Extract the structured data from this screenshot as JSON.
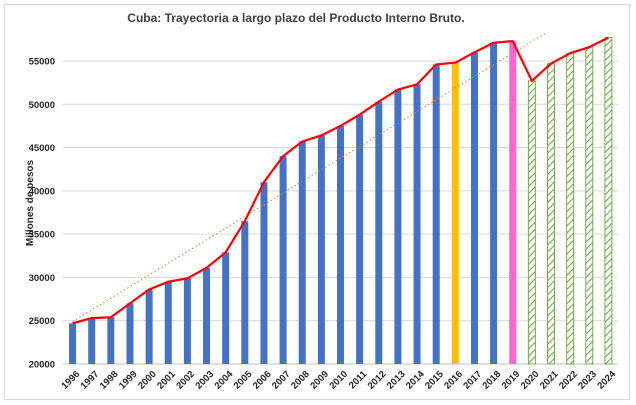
{
  "chart_data": {
    "type": "bar",
    "title": "Cuba: Trayectoria a largo plazo del Producto Interno Bruto.",
    "ylabel": "Millones de pesos",
    "xlabel": "",
    "ylim": [
      20000,
      58000
    ],
    "yticks": [
      20000,
      25000,
      30000,
      35000,
      40000,
      45000,
      50000,
      55000
    ],
    "grid": true,
    "legend": "none",
    "categories": [
      "1996",
      "1997",
      "1998",
      "1999",
      "2000",
      "2001",
      "2002",
      "2003",
      "2004",
      "2005",
      "2006",
      "2007",
      "2008",
      "2009",
      "2010",
      "2011",
      "2012",
      "2013",
      "2014",
      "2015",
      "2016",
      "2017",
      "2018",
      "2019",
      "2020",
      "2021",
      "2022",
      "2023",
      "2024"
    ],
    "series": [
      {
        "type": "bar",
        "values": [
          24700,
          25300,
          25400,
          27000,
          28600,
          29500,
          29900,
          31100,
          32900,
          36500,
          41000,
          44000,
          45700,
          46400,
          47500,
          48800,
          50300,
          51700,
          52300,
          54600,
          54800,
          56000,
          57100,
          57300,
          52700,
          54700,
          55900,
          56600,
          57700
        ],
        "styles": [
          "solid",
          "solid",
          "solid",
          "solid",
          "solid",
          "solid",
          "solid",
          "solid",
          "solid",
          "solid",
          "solid",
          "solid",
          "solid",
          "solid",
          "solid",
          "solid",
          "solid",
          "solid",
          "solid",
          "solid",
          "solid",
          "solid",
          "solid",
          "solid",
          "hatched",
          "hatched",
          "hatched",
          "hatched",
          "hatched"
        ],
        "colors": [
          "#4472c4",
          "#4472c4",
          "#4472c4",
          "#4472c4",
          "#4472c4",
          "#4472c4",
          "#4472c4",
          "#4472c4",
          "#4472c4",
          "#4472c4",
          "#4472c4",
          "#4472c4",
          "#4472c4",
          "#4472c4",
          "#4472c4",
          "#4472c4",
          "#4472c4",
          "#4472c4",
          "#4472c4",
          "#4472c4",
          "#ffc000",
          "#4472c4",
          "#4472c4",
          "#ff66cc",
          "#70ad47",
          "#70ad47",
          "#70ad47",
          "#70ad47",
          "#70ad47"
        ]
      },
      {
        "type": "line",
        "color": "#ff0000",
        "values": [
          24700,
          25300,
          25400,
          27000,
          28600,
          29500,
          29900,
          31100,
          32900,
          36500,
          41000,
          44000,
          45700,
          46400,
          47500,
          48800,
          50300,
          51700,
          52300,
          54600,
          54800,
          56000,
          57100,
          57300,
          52700,
          54700,
          55900,
          56600,
          57700
        ]
      },
      {
        "type": "trendline",
        "style": "dotted",
        "color": "#ed7d31",
        "start": {
          "x": "1996",
          "y": 24900
        },
        "end": {
          "x": "2020",
          "y": 58200
        }
      }
    ]
  }
}
